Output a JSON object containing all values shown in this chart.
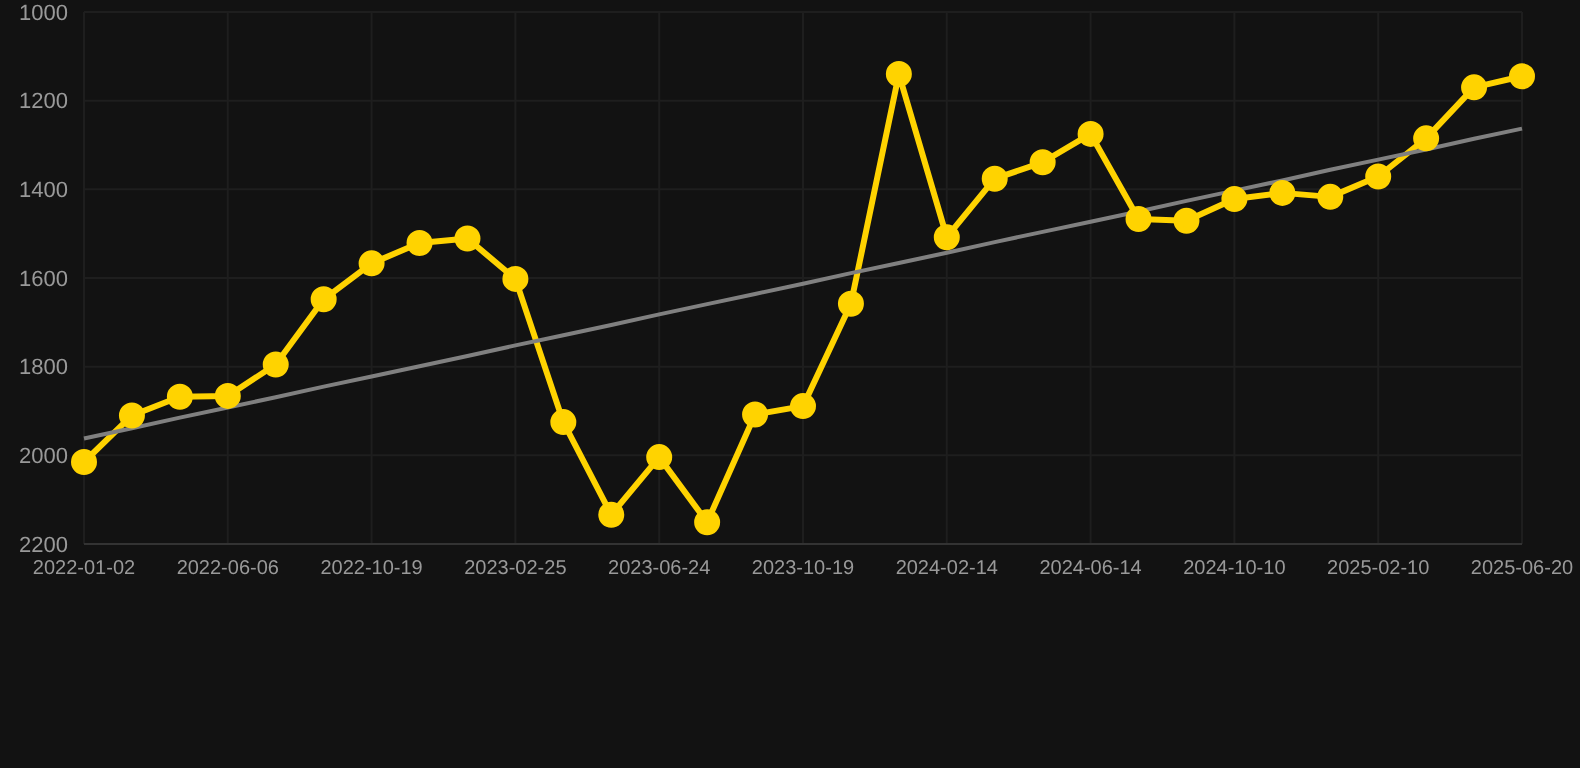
{
  "chart_data": {
    "type": "line",
    "categories": [
      "2022-01-02",
      null,
      null,
      "2022-06-06",
      null,
      null,
      "2022-10-19",
      null,
      null,
      "2023-02-25",
      null,
      null,
      "2023-06-24",
      null,
      null,
      "2023-10-19",
      null,
      null,
      "2024-02-14",
      null,
      null,
      "2024-06-14",
      null,
      null,
      "2024-10-10",
      null,
      null,
      "2025-02-10",
      null,
      null,
      "2025-06-20"
    ],
    "series": [
      {
        "color": "#ffd300",
        "marker": "circle",
        "values": [
          2015,
          1910,
          1868,
          1866,
          1795,
          1648,
          1567,
          1521,
          1511,
          1602,
          1925,
          2134,
          2004,
          2151,
          1908,
          1889,
          1658,
          1140,
          1508,
          1376,
          1339,
          1275,
          1467,
          1471,
          1422,
          1408,
          1417,
          1371,
          1285,
          1170,
          1145
        ]
      },
      {
        "type": "line",
        "color": "#808080",
        "marker": "none",
        "values": [
          1962,
          1939,
          1915,
          1892,
          1869,
          1845,
          1822,
          1799,
          1776,
          1752,
          1729,
          1706,
          1682,
          1659,
          1636,
          1613,
          1589,
          1566,
          1543,
          1519,
          1496,
          1473,
          1450,
          1426,
          1403,
          1380,
          1356,
          1333,
          1310,
          1286,
          1263
        ]
      }
    ],
    "ylim": [
      2200,
      1000
    ],
    "yticks": [
      1000,
      1200,
      1400,
      1600,
      1800,
      2000,
      2200
    ],
    "grid": true
  }
}
